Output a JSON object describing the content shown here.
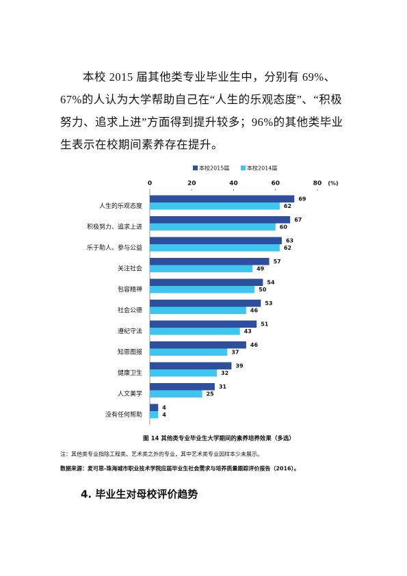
{
  "paragraph": "本校 2015 届其他类专业毕业生中，分别有 69%、67%的人认为大学帮助自己在“人生的乐观态度”、“积极努力、追求上进”方面得到提升较多；96%的其他类毕业生表示在校期间素养存在提升。",
  "chart_data": {
    "type": "hbar",
    "categories": [
      "人生的乐观态度",
      "积极努力、追求上进",
      "乐于助人、参与公益",
      "关注社会",
      "包容精神",
      "社会公德",
      "遵纪守法",
      "知恩图报",
      "健康卫生",
      "人文美学",
      "没有任何帮助"
    ],
    "series": [
      {
        "name": "本校2015届",
        "color": "#2e4f9e",
        "values": [
          69,
          67,
          63,
          57,
          54,
          53,
          51,
          46,
          39,
          31,
          4
        ]
      },
      {
        "name": "本校2014届",
        "color": "#3ec6ef",
        "values": [
          62,
          60,
          62,
          49,
          50,
          46,
          43,
          37,
          32,
          25,
          4
        ]
      }
    ],
    "xlim": [
      0,
      80
    ],
    "xticks": [
      0,
      20,
      40,
      60,
      80
    ],
    "x_unit": "(%)",
    "legend": "top"
  },
  "caption": "图 14  其他类专业毕业生大学期间的素养培养效果（多选）",
  "note": "注：其他类专业指除工程类、艺术类之外的专业，其中艺术类专业因样本少未展示。",
  "source": "数据来源：麦可思-珠海城市职业技术学院应届毕业生社会需求与培养质量跟踪评价报告（2016）。",
  "heading": "4. 毕业生对母校评价趋势"
}
